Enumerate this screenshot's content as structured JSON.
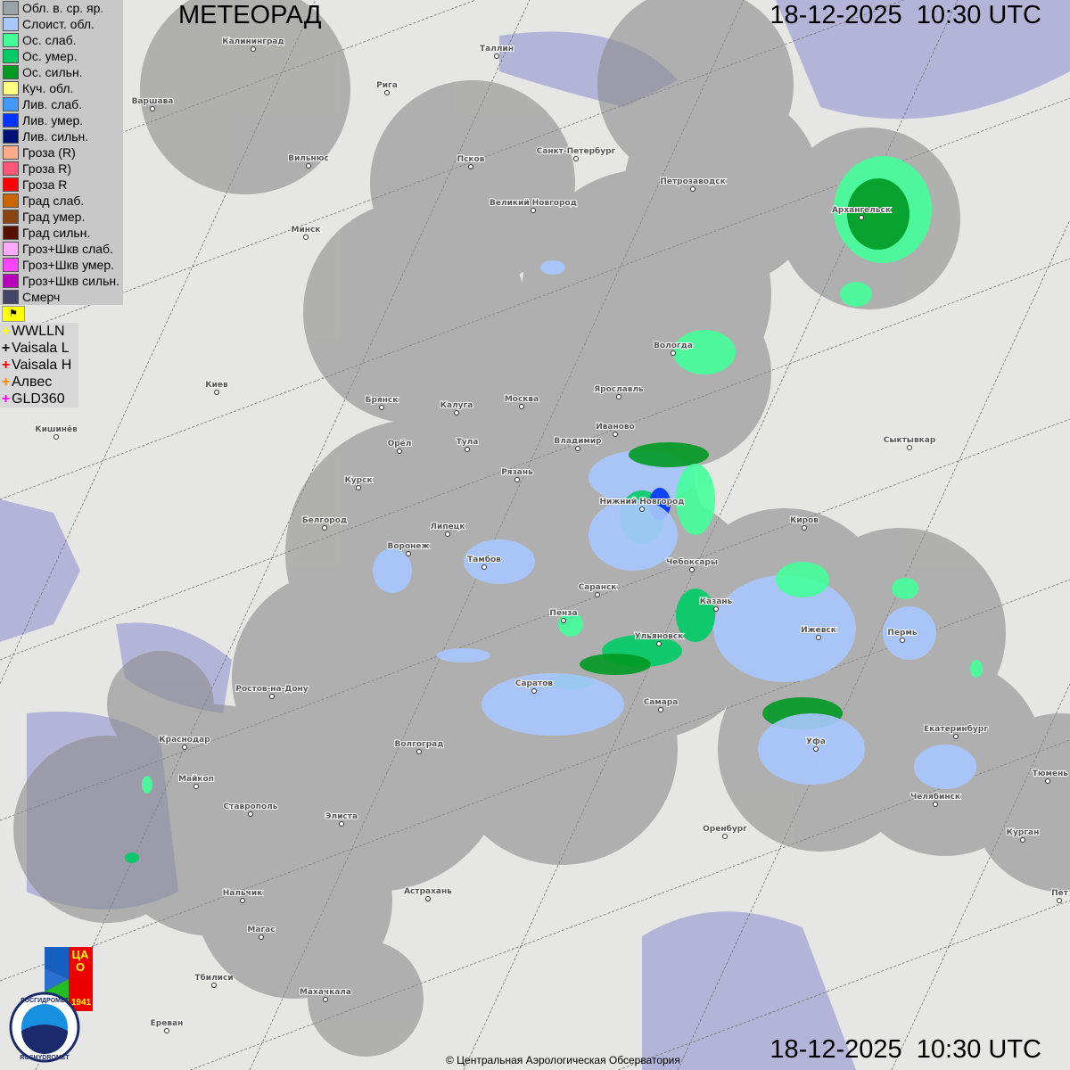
{
  "header": {
    "title": "МЕТЕОРАД",
    "timestamp_top": "18-12-2025  10:30 UTC",
    "timestamp_bottom": "18-12-2025  10:30 UTC"
  },
  "legend": [
    {
      "label": "Обл. в. ср. яр.",
      "color": "#9aa4a8"
    },
    {
      "label": "Слоист. обл.",
      "color": "#a8c8ff"
    },
    {
      "label": "Ос. слаб.",
      "color": "#44ff99"
    },
    {
      "label": "Ос. умер.",
      "color": "#00cc66"
    },
    {
      "label": "Ос. сильн.",
      "color": "#009922"
    },
    {
      "label": "Куч. обл.",
      "color": "#ffff80"
    },
    {
      "label": "Лив. слаб.",
      "color": "#4499ff"
    },
    {
      "label": "Лив. умер.",
      "color": "#0033ff"
    },
    {
      "label": "Лив. сильн.",
      "color": "#001177"
    },
    {
      "label": "Гроза (R)",
      "color": "#ffaa88"
    },
    {
      "label": "Гроза R)",
      "color": "#ff5577"
    },
    {
      "label": "Гроза R",
      "color": "#ff0000"
    },
    {
      "label": "Град слаб.",
      "color": "#cc6600"
    },
    {
      "label": "Град умер.",
      "color": "#884411"
    },
    {
      "label": "Град сильн.",
      "color": "#551100"
    },
    {
      "label": "Гроз+Шкв слаб.",
      "color": "#ffaaff"
    },
    {
      "label": "Гроз+Шкв умер.",
      "color": "#ff44ff"
    },
    {
      "label": "Гроз+Шкв сильн.",
      "color": "#bb00bb"
    },
    {
      "label": "Смерч",
      "color": "#444466"
    }
  ],
  "lightning_flag_icon": "flag-icon",
  "lightning": [
    {
      "label": "WWLLN",
      "color": "#ffff00"
    },
    {
      "label": "Vaisala L",
      "color": "#000000"
    },
    {
      "label": "Vaisala H",
      "color": "#ff0000"
    },
    {
      "label": "Алвес",
      "color": "#ff8800"
    },
    {
      "label": "GLD360",
      "color": "#ff00ff"
    }
  ],
  "cities": [
    "Калининград",
    "Таллин",
    "Рига",
    "Варшава",
    "Вильнюс",
    "Псков",
    "Санкт-Петербург",
    "Петрозаводск",
    "Архангельск",
    "Великий Новгород",
    "Минск",
    "Вологда",
    "Киев",
    "Брянск",
    "Калуга",
    "Москва",
    "Ярославль",
    "Иваново",
    "Кишинёв",
    "Орёл",
    "Тула",
    "Владимир",
    "Сыктывкар",
    "Рязань",
    "Курск",
    "Нижний Новгород",
    "Киров",
    "Белгород",
    "Липецк",
    "Воронеж",
    "Тамбов",
    "Чебоксары",
    "Саранск",
    "Казань",
    "Пенза",
    "Ижевск",
    "Пермь",
    "Ульяновск",
    "Саратов",
    "Ростов-на-Дону",
    "Самара",
    "Екатеринбург",
    "Уфа",
    "Краснодар",
    "Волгоград",
    "Майкоп",
    "Челябинск",
    "Ставрополь",
    "Элиста",
    "Тюмень",
    "Оренбург",
    "Курган",
    "Астрахань",
    "Нальчик",
    "Магас",
    "Тбилиси",
    "Махачкала",
    "Ереван",
    "Пет"
  ],
  "logos": {
    "cao_text": "ЦАО",
    "cao_year": "1941",
    "roshydromet_ru": "РОСГИДРОМЕТ",
    "roshydromet_en": "ROSHYDROMET"
  },
  "footer": {
    "copyright": "© Центральная Аэрологическая Обсерватория"
  },
  "colors": {
    "radar_coverage": "#8c8c8c",
    "water": "#b4b4d8",
    "land": "#e6e6e4"
  }
}
